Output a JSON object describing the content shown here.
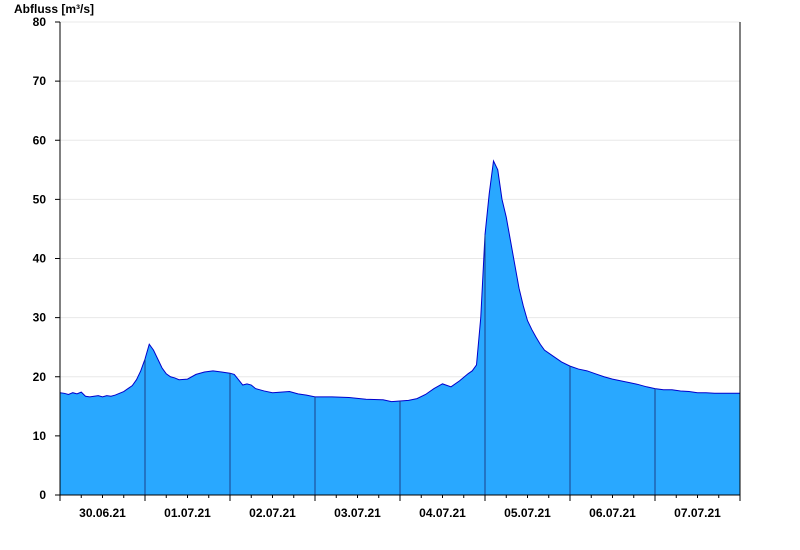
{
  "chart_data": {
    "type": "area",
    "title": "",
    "ylabel": "Abfluss [m³/s]",
    "xlabel": "",
    "ylim": [
      0,
      80
    ],
    "y_ticks": [
      0,
      10,
      20,
      30,
      40,
      50,
      60,
      70,
      80
    ],
    "x_range": [
      0,
      8
    ],
    "day_labels": [
      "30.06.21",
      "01.07.21",
      "02.07.21",
      "03.07.21",
      "04.07.21",
      "05.07.21",
      "06.07.21",
      "07.07.21"
    ],
    "grid": true,
    "fill_color": "#29a8ff",
    "line_color": "#0000cc",
    "x": [
      0.0,
      0.05,
      0.1,
      0.15,
      0.2,
      0.25,
      0.3,
      0.35,
      0.4,
      0.45,
      0.5,
      0.55,
      0.6,
      0.65,
      0.7,
      0.75,
      0.8,
      0.85,
      0.9,
      0.95,
      1.0,
      1.05,
      1.1,
      1.15,
      1.2,
      1.25,
      1.3,
      1.35,
      1.4,
      1.5,
      1.6,
      1.7,
      1.8,
      1.9,
      2.0,
      2.05,
      2.1,
      2.15,
      2.2,
      2.25,
      2.3,
      2.4,
      2.5,
      2.6,
      2.7,
      2.8,
      2.9,
      3.0,
      3.2,
      3.4,
      3.6,
      3.8,
      3.9,
      4.0,
      4.1,
      4.2,
      4.3,
      4.4,
      4.5,
      4.6,
      4.7,
      4.8,
      4.85,
      4.9,
      4.95,
      5.0,
      5.05,
      5.1,
      5.15,
      5.2,
      5.25,
      5.3,
      5.35,
      5.4,
      5.45,
      5.5,
      5.55,
      5.6,
      5.65,
      5.7,
      5.8,
      5.9,
      6.0,
      6.1,
      6.2,
      6.3,
      6.4,
      6.5,
      6.6,
      6.7,
      6.8,
      6.9,
      7.0,
      7.1,
      7.2,
      7.3,
      7.4,
      7.5,
      7.6,
      7.7,
      7.8,
      7.9,
      8.0
    ],
    "y": [
      17.3,
      17.2,
      17.0,
      17.3,
      17.1,
      17.4,
      16.7,
      16.6,
      16.7,
      16.8,
      16.6,
      16.8,
      16.7,
      16.9,
      17.2,
      17.5,
      18.0,
      18.5,
      19.5,
      21.0,
      23.0,
      25.5,
      24.5,
      23.0,
      21.5,
      20.5,
      20.0,
      19.8,
      19.5,
      19.6,
      20.4,
      20.8,
      21.0,
      20.8,
      20.6,
      20.4,
      19.5,
      18.6,
      18.8,
      18.6,
      18.0,
      17.6,
      17.3,
      17.4,
      17.5,
      17.1,
      16.9,
      16.6,
      16.6,
      16.5,
      16.2,
      16.1,
      15.8,
      15.9,
      16.0,
      16.3,
      17.0,
      18.0,
      18.8,
      18.3,
      19.3,
      20.5,
      21.0,
      22.0,
      30.0,
      44.0,
      51.0,
      56.5,
      55.0,
      50.0,
      47.0,
      43.0,
      39.0,
      35.0,
      32.0,
      29.5,
      28.0,
      26.7,
      25.5,
      24.5,
      23.5,
      22.5,
      21.8,
      21.3,
      21.0,
      20.5,
      20.0,
      19.6,
      19.3,
      19.0,
      18.7,
      18.3,
      18.0,
      17.8,
      17.8,
      17.6,
      17.5,
      17.3,
      17.3,
      17.2,
      17.2,
      17.2,
      17.2
    ]
  }
}
